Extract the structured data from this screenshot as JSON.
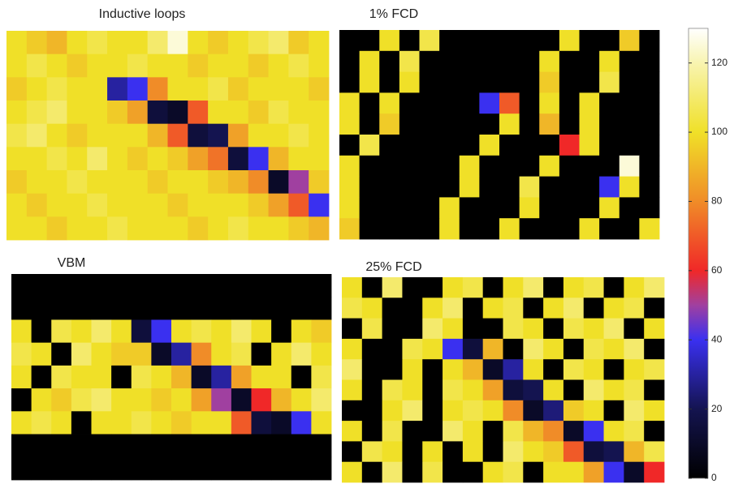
{
  "chart_data": [
    {
      "type": "heatmap",
      "title": "Inductive loops",
      "z": [
        [
          100,
          95,
          90,
          100,
          105,
          100,
          100,
          110,
          125,
          100,
          95,
          100,
          105,
          110,
          95,
          100
        ],
        [
          100,
          105,
          100,
          95,
          100,
          100,
          105,
          100,
          100,
          95,
          100,
          100,
          95,
          100,
          105,
          100
        ],
        [
          95,
          100,
          105,
          100,
          100,
          30,
          40,
          80,
          100,
          100,
          105,
          95,
          100,
          100,
          100,
          95
        ],
        [
          100,
          105,
          110,
          100,
          100,
          95,
          85,
          15,
          10,
          70,
          100,
          100,
          95,
          105,
          100,
          100
        ],
        [
          105,
          110,
          100,
          95,
          100,
          100,
          100,
          90,
          70,
          15,
          20,
          85,
          100,
          100,
          105,
          100
        ],
        [
          100,
          100,
          105,
          100,
          110,
          100,
          95,
          100,
          95,
          85,
          75,
          15,
          40,
          90,
          100,
          100
        ],
        [
          95,
          100,
          100,
          105,
          100,
          100,
          100,
          95,
          100,
          100,
          95,
          90,
          80,
          10,
          50,
          95
        ],
        [
          100,
          95,
          100,
          100,
          105,
          100,
          100,
          100,
          95,
          100,
          100,
          100,
          95,
          85,
          70,
          40
        ],
        [
          100,
          100,
          95,
          100,
          100,
          105,
          100,
          100,
          100,
          95,
          100,
          105,
          100,
          100,
          95,
          90
        ]
      ]
    },
    {
      "type": "heatmap",
      "title": "1% FCD",
      "z": [
        [
          0,
          0,
          100,
          0,
          105,
          0,
          0,
          0,
          0,
          0,
          0,
          100,
          0,
          0,
          95,
          0
        ],
        [
          0,
          100,
          0,
          105,
          0,
          0,
          0,
          0,
          0,
          0,
          100,
          0,
          0,
          100,
          0,
          0
        ],
        [
          0,
          100,
          0,
          100,
          0,
          0,
          0,
          0,
          0,
          0,
          95,
          0,
          0,
          105,
          0,
          0
        ],
        [
          100,
          0,
          100,
          0,
          0,
          0,
          0,
          40,
          70,
          0,
          100,
          0,
          100,
          0,
          0,
          0
        ],
        [
          100,
          0,
          95,
          0,
          0,
          0,
          0,
          0,
          100,
          0,
          90,
          0,
          100,
          0,
          0,
          0
        ],
        [
          0,
          105,
          0,
          0,
          0,
          0,
          0,
          100,
          0,
          0,
          0,
          60,
          100,
          0,
          0,
          0
        ],
        [
          100,
          0,
          0,
          0,
          0,
          0,
          100,
          0,
          0,
          0,
          100,
          0,
          0,
          0,
          125,
          0
        ],
        [
          100,
          0,
          0,
          0,
          0,
          0,
          100,
          0,
          0,
          105,
          0,
          0,
          0,
          40,
          100,
          0
        ],
        [
          100,
          0,
          0,
          0,
          0,
          100,
          0,
          0,
          0,
          100,
          0,
          0,
          0,
          100,
          0,
          0
        ],
        [
          95,
          0,
          0,
          0,
          0,
          100,
          0,
          0,
          100,
          0,
          0,
          0,
          100,
          0,
          0,
          100
        ]
      ]
    },
    {
      "type": "heatmap",
      "title": "VBM",
      "z": [
        [
          0,
          0,
          0,
          0,
          0,
          0,
          0,
          0,
          0,
          0,
          0,
          0,
          0,
          0,
          0,
          0
        ],
        [
          0,
          0,
          0,
          0,
          0,
          0,
          0,
          0,
          0,
          0,
          0,
          0,
          0,
          0,
          0,
          0
        ],
        [
          100,
          0,
          105,
          100,
          110,
          100,
          15,
          40,
          100,
          105,
          100,
          110,
          100,
          0,
          100,
          95
        ],
        [
          105,
          100,
          0,
          110,
          100,
          95,
          95,
          10,
          30,
          80,
          100,
          105,
          0,
          100,
          110,
          100
        ],
        [
          100,
          0,
          105,
          100,
          100,
          0,
          105,
          100,
          90,
          10,
          30,
          85,
          100,
          100,
          0,
          105
        ],
        [
          0,
          100,
          95,
          105,
          110,
          100,
          100,
          95,
          100,
          85,
          50,
          10,
          60,
          90,
          100,
          110
        ],
        [
          100,
          105,
          100,
          0,
          100,
          100,
          105,
          100,
          95,
          100,
          100,
          70,
          15,
          10,
          40,
          100
        ],
        [
          0,
          0,
          0,
          0,
          0,
          0,
          0,
          0,
          0,
          0,
          0,
          0,
          0,
          0,
          0,
          0
        ],
        [
          0,
          0,
          0,
          0,
          0,
          0,
          0,
          0,
          0,
          0,
          0,
          0,
          0,
          0,
          0,
          0
        ]
      ]
    },
    {
      "type": "heatmap",
      "title": "25% FCD",
      "z": [
        [
          100,
          0,
          110,
          0,
          0,
          100,
          105,
          0,
          100,
          110,
          0,
          100,
          105,
          0,
          100,
          110
        ],
        [
          105,
          100,
          0,
          0,
          100,
          110,
          0,
          100,
          105,
          0,
          100,
          110,
          0,
          100,
          105,
          0
        ],
        [
          0,
          105,
          0,
          0,
          110,
          100,
          0,
          0,
          105,
          100,
          0,
          105,
          100,
          110,
          0,
          100
        ],
        [
          100,
          0,
          0,
          105,
          100,
          40,
          15,
          90,
          0,
          110,
          100,
          0,
          105,
          100,
          110,
          0
        ],
        [
          110,
          0,
          0,
          100,
          0,
          100,
          90,
          10,
          30,
          100,
          0,
          105,
          100,
          0,
          100,
          105
        ],
        [
          100,
          0,
          105,
          100,
          0,
          105,
          100,
          85,
          15,
          20,
          100,
          0,
          110,
          100,
          105,
          0
        ],
        [
          0,
          0,
          100,
          110,
          0,
          100,
          105,
          100,
          80,
          10,
          25,
          95,
          100,
          0,
          110,
          100
        ],
        [
          100,
          0,
          105,
          0,
          0,
          110,
          100,
          0,
          105,
          90,
          80,
          10,
          40,
          100,
          105,
          0
        ],
        [
          0,
          105,
          100,
          0,
          100,
          0,
          100,
          0,
          110,
          100,
          95,
          70,
          15,
          20,
          90,
          105
        ],
        [
          100,
          0,
          110,
          0,
          105,
          0,
          0,
          100,
          105,
          0,
          100,
          100,
          85,
          40,
          10,
          60
        ]
      ]
    }
  ],
  "colorbar": {
    "ylim": [
      0,
      130
    ],
    "yticks": [
      0,
      20,
      40,
      60,
      80,
      100,
      120
    ],
    "colorscale": [
      [
        0,
        "#000000"
      ],
      [
        20,
        "#141450"
      ],
      [
        40,
        "#3a30f0"
      ],
      [
        50,
        "#a040a0"
      ],
      [
        60,
        "#f02828"
      ],
      [
        80,
        "#f08c28"
      ],
      [
        100,
        "#f0e028"
      ],
      [
        120,
        "#f8f4b0"
      ],
      [
        130,
        "#ffffff"
      ]
    ]
  }
}
